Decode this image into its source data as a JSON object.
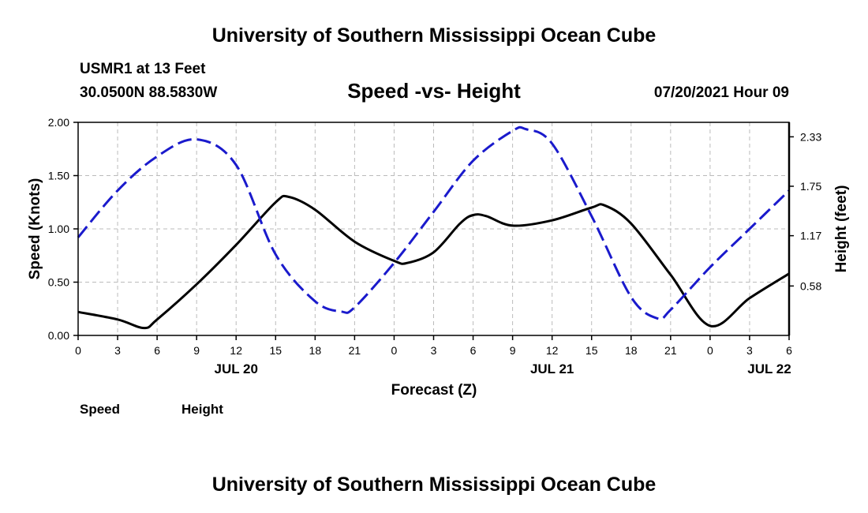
{
  "page": {
    "title_top": "University of Southern Mississippi Ocean Cube",
    "title_bottom": "University of Southern Mississippi Ocean Cube"
  },
  "station": {
    "name": "USMR1 at 13 Feet",
    "coords": "30.0500N  88.5830W",
    "datetime": "07/20/2021 Hour 09"
  },
  "colors": {
    "speed": "#000000",
    "height": "#1a1acc",
    "grid": "#bbbbbb"
  },
  "chart_data": {
    "type": "line",
    "title": "Speed -vs- Height",
    "xlabel": "Forecast (Z)",
    "ylabel": "Speed (Knots)",
    "y2label": "Height (feet)",
    "x_unit": "hours since Jul 20 00Z",
    "xlim": [
      0,
      54
    ],
    "x_ticks": [
      0,
      3,
      6,
      9,
      12,
      15,
      18,
      21,
      24,
      27,
      30,
      33,
      36,
      39,
      42,
      45,
      48,
      51,
      54
    ],
    "x_tick_labels": [
      "0",
      "3",
      "6",
      "9",
      "12",
      "15",
      "18",
      "21",
      "0",
      "3",
      "6",
      "9",
      "12",
      "15",
      "18",
      "21",
      "0",
      "3",
      "6"
    ],
    "date_labels": [
      {
        "x": 12,
        "label": "JUL 20"
      },
      {
        "x": 36,
        "label": "JUL 21"
      },
      {
        "x": 52.5,
        "label": "JUL 22"
      }
    ],
    "ylim": [
      0,
      2.0
    ],
    "y_ticks": [
      0,
      0.5,
      1.0,
      1.5,
      2.0
    ],
    "y_tick_labels": [
      "0.00",
      "0.50",
      "1.00",
      "1.50",
      "2.00"
    ],
    "y2_ticks": [
      0.58,
      1.17,
      1.75,
      2.33
    ],
    "y2_tick_labels": [
      "0.58",
      "1.17",
      "1.75",
      "2.33"
    ],
    "y2_at_ylim": [
      0,
      2.5
    ],
    "grid": true,
    "legend": [
      {
        "name": "Speed",
        "style": "solid"
      },
      {
        "name": "Height",
        "style": "dashed"
      }
    ],
    "series": [
      {
        "name": "Speed",
        "axis": "left",
        "x": [
          0,
          3,
          5,
          6,
          9,
          12,
          15,
          16,
          18,
          21,
          24,
          25,
          27,
          29,
          30,
          31,
          33,
          36,
          39,
          40,
          42,
          45,
          48,
          51,
          54
        ],
        "y": [
          0.22,
          0.15,
          0.07,
          0.15,
          0.48,
          0.85,
          1.25,
          1.3,
          1.18,
          0.88,
          0.7,
          0.68,
          0.78,
          1.05,
          1.13,
          1.12,
          1.03,
          1.08,
          1.2,
          1.22,
          1.05,
          0.57,
          0.09,
          0.35,
          0.58
        ]
      },
      {
        "name": "Height",
        "axis": "right",
        "x": [
          0,
          3,
          6,
          9,
          12,
          15,
          18,
          20,
          21,
          24,
          27,
          30,
          33,
          34,
          36,
          39,
          42,
          44,
          45,
          48,
          51,
          54
        ],
        "y": [
          1.15,
          1.7,
          2.1,
          2.3,
          2.0,
          0.95,
          0.4,
          0.28,
          0.33,
          0.85,
          1.45,
          2.05,
          2.4,
          2.42,
          2.25,
          1.4,
          0.45,
          0.2,
          0.3,
          0.8,
          1.25,
          1.7
        ]
      }
    ]
  }
}
